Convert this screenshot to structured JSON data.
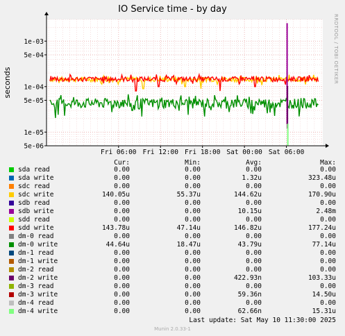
{
  "title": "IO Service time - by day",
  "side_credit": "RRDTOOL / TOBI OETIKER",
  "footer": "Munin 2.0.33-1",
  "last_update": "Last update:  Sat May 10 11:30:00 2025",
  "columns": [
    "Cur:",
    "Min:",
    "Avg:",
    "Max:"
  ],
  "legend": [
    {
      "name": "sda read",
      "color": "#00cc00",
      "cur": "0.00",
      "min": "0.00",
      "avg": "0.00",
      "max": "0.00"
    },
    {
      "name": "sda write",
      "color": "#0066b3",
      "cur": "0.00",
      "min": "0.00",
      "avg": "1.32u",
      "max": "323.48u"
    },
    {
      "name": "sdc read",
      "color": "#ff8000",
      "cur": "0.00",
      "min": "0.00",
      "avg": "0.00",
      "max": "0.00"
    },
    {
      "name": "sdc write",
      "color": "#ffcc00",
      "cur": "140.05u",
      "min": "55.37u",
      "avg": "144.62u",
      "max": "170.90u"
    },
    {
      "name": "sdb read",
      "color": "#330099",
      "cur": "0.00",
      "min": "0.00",
      "avg": "0.00",
      "max": "0.00"
    },
    {
      "name": "sdb write",
      "color": "#990099",
      "cur": "0.00",
      "min": "0.00",
      "avg": "10.15u",
      "max": "2.48m"
    },
    {
      "name": "sdd read",
      "color": "#ccff00",
      "cur": "0.00",
      "min": "0.00",
      "avg": "0.00",
      "max": "0.00"
    },
    {
      "name": "sdd write",
      "color": "#ff0000",
      "cur": "143.78u",
      "min": "47.14u",
      "avg": "146.82u",
      "max": "177.24u"
    },
    {
      "name": "dm-0 read",
      "color": "#808080",
      "cur": "0.00",
      "min": "0.00",
      "avg": "0.00",
      "max": "0.00"
    },
    {
      "name": "dm-0 write",
      "color": "#008f00",
      "cur": "44.64u",
      "min": "18.47u",
      "avg": "43.79u",
      "max": "77.14u"
    },
    {
      "name": "dm-1 read",
      "color": "#00487d",
      "cur": "0.00",
      "min": "0.00",
      "avg": "0.00",
      "max": "0.00"
    },
    {
      "name": "dm-1 write",
      "color": "#b35a00",
      "cur": "0.00",
      "min": "0.00",
      "avg": "0.00",
      "max": "0.00"
    },
    {
      "name": "dm-2 read",
      "color": "#b38f00",
      "cur": "0.00",
      "min": "0.00",
      "avg": "0.00",
      "max": "0.00"
    },
    {
      "name": "dm-2 write",
      "color": "#6b006b",
      "cur": "0.00",
      "min": "0.00",
      "avg": "422.93n",
      "max": "103.33u"
    },
    {
      "name": "dm-3 read",
      "color": "#8fb300",
      "cur": "0.00",
      "min": "0.00",
      "avg": "0.00",
      "max": "0.00"
    },
    {
      "name": "dm-3 write",
      "color": "#b30000",
      "cur": "0.00",
      "min": "0.00",
      "avg": "59.36n",
      "max": "14.50u"
    },
    {
      "name": "dm-4 read",
      "color": "#bebebe",
      "cur": "0.00",
      "min": "0.00",
      "avg": "0.00",
      "max": "0.00"
    },
    {
      "name": "dm-4 write",
      "color": "#80ff80",
      "cur": "0.00",
      "min": "0.00",
      "avg": "62.66n",
      "max": "15.31u"
    }
  ],
  "chart_data": {
    "type": "line",
    "title": "IO Service time - by day",
    "ylabel": "seconds",
    "yscale": "log",
    "ylim": [
      5e-06,
      0.003
    ],
    "y_ticks": [
      {
        "label": "1e-03",
        "value": 0.001
      },
      {
        "label": "5e-04",
        "value": 0.0005
      },
      {
        "label": "1e-04",
        "value": 0.0001
      },
      {
        "label": "5e-05",
        "value": 5e-05
      },
      {
        "label": "1e-05",
        "value": 1e-05
      },
      {
        "label": "5e-06",
        "value": 5e-06
      }
    ],
    "x_range_hours": [
      0,
      30
    ],
    "x_ticks": [
      {
        "label": "Fri 06:00",
        "hour": 6
      },
      {
        "label": "Fri 12:00",
        "hour": 12
      },
      {
        "label": "Fri 18:00",
        "hour": 18
      },
      {
        "label": "Sat 00:00",
        "hour": 24
      },
      {
        "label": "Sat 06:00",
        "hour": 30
      }
    ],
    "series": [
      {
        "name": "sdc write",
        "color": "#ffcc00",
        "base": 0.000145,
        "spread": 0.12,
        "dips": [
          [
            9.5,
            9e-05
          ],
          [
            15.5,
            0.0001
          ],
          [
            17.8,
            9e-05
          ]
        ]
      },
      {
        "name": "sdd write",
        "color": "#ff0000",
        "base": 0.000147,
        "spread": 0.12,
        "dips": [
          [
            8.5,
            8e-05
          ],
          [
            11.7,
            0.0001
          ],
          [
            20.5,
            8e-05
          ],
          [
            25.5,
            0.0001
          ]
        ]
      },
      {
        "name": "dm-0 write",
        "color": "#008f00",
        "base": 4.38e-05,
        "spread": 0.25,
        "dips": [
          [
            8.0,
            3e-05
          ],
          [
            18.3,
            2.2e-05
          ],
          [
            25.2,
            2.5e-05
          ]
        ]
      },
      {
        "name": "sdb write",
        "color": "#990099",
        "spike": {
          "hour": 30.1,
          "low": 1.5e-05,
          "high": 0.00248
        }
      },
      {
        "name": "dm-2 write",
        "color": "#6b006b",
        "spike": {
          "hour": 30.15,
          "low": 1.2e-05,
          "high": 0.000103
        }
      },
      {
        "name": "dm-4 write",
        "color": "#80ff80",
        "spike": {
          "hour": 30.2,
          "low": 5e-06,
          "high": 1.53e-05
        }
      }
    ]
  }
}
